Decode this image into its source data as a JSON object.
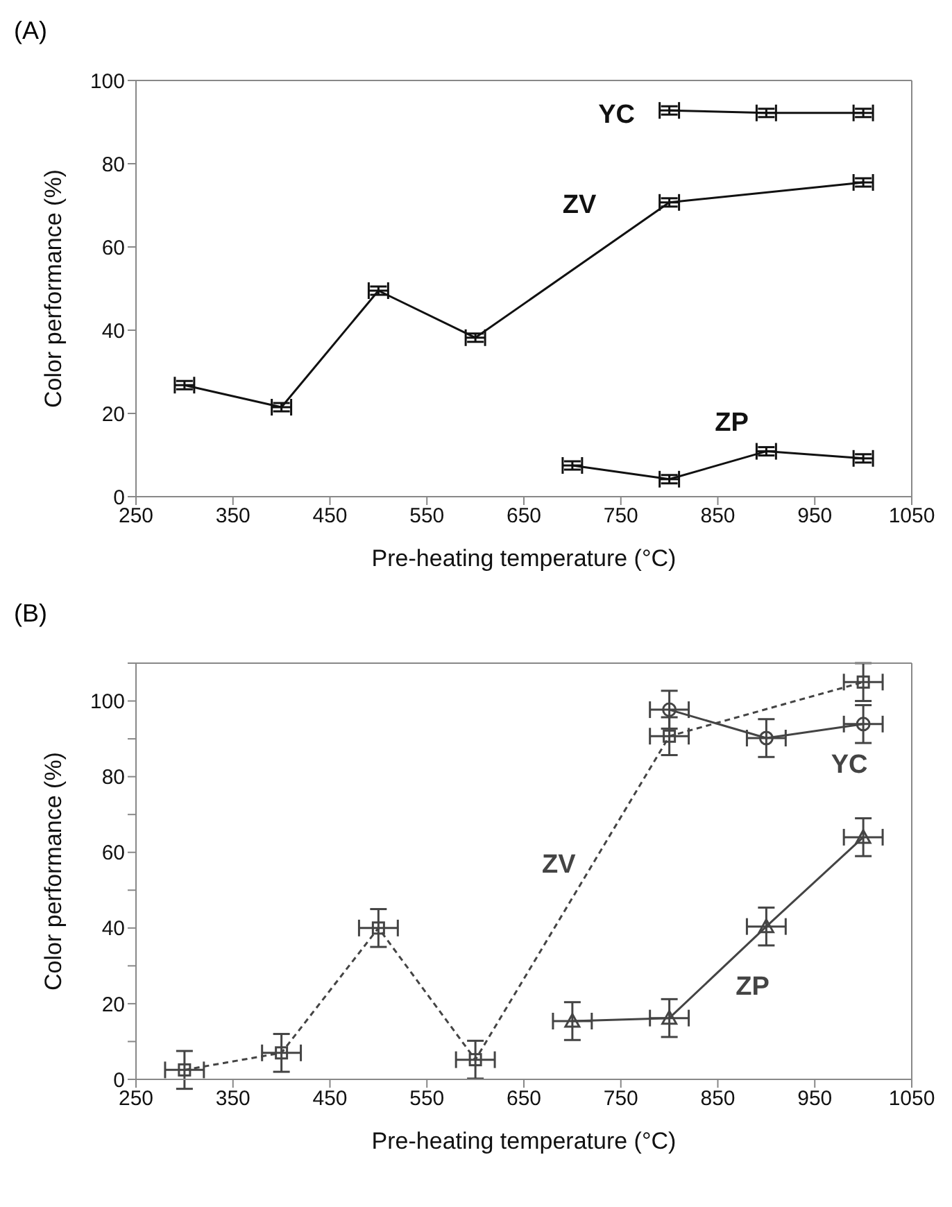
{
  "chart_data": [
    {
      "type": "line",
      "title": "(A)",
      "xlabel": "Pre-heating temperature (°C)",
      "ylabel": "Color performance (%)",
      "xlim": [
        250,
        1050
      ],
      "xticks": [
        250,
        350,
        450,
        550,
        650,
        750,
        850,
        950,
        1050
      ],
      "ylim": [
        0,
        100
      ],
      "yticks": [
        0,
        20,
        40,
        60,
        80,
        100
      ],
      "marker": "none",
      "line_style": "solid",
      "series": [
        {
          "name": "YC",
          "color": "#111111",
          "x": [
            800,
            900,
            1000
          ],
          "values": [
            92.8,
            92.2,
            92.2
          ],
          "errors": [
            1,
            1,
            1
          ],
          "xerrors": [
            10,
            10,
            10
          ]
        },
        {
          "name": "ZV",
          "color": "#111111",
          "x": [
            300,
            400,
            500,
            600,
            800,
            1000
          ],
          "values": [
            26.8,
            21.5,
            49.5,
            38.2,
            70.7,
            75.5
          ],
          "errors": [
            1,
            1,
            1,
            1,
            1,
            1
          ],
          "xerrors": [
            10,
            10,
            10,
            10,
            10,
            10
          ]
        },
        {
          "name": "ZP",
          "color": "#111111",
          "x": [
            700,
            800,
            900,
            1000
          ],
          "values": [
            7.5,
            4.2,
            10.9,
            9.2
          ],
          "errors": [
            1,
            1,
            1,
            1
          ],
          "xerrors": [
            10,
            10,
            10,
            10
          ]
        }
      ]
    },
    {
      "type": "line",
      "title": "(B)",
      "xlabel": "Pre-heating temperature (°C)",
      "ylabel": "Color performance (%)",
      "xlim": [
        250,
        1050
      ],
      "xticks": [
        250,
        350,
        450,
        550,
        650,
        750,
        850,
        950,
        1050
      ],
      "ylim": [
        0,
        110
      ],
      "yticks": [
        0,
        {
          "value": 10,
          "label": null
        },
        20,
        {
          "value": 30,
          "label": null
        },
        40,
        {
          "value": 50,
          "label": null
        },
        60,
        {
          "value": 70,
          "label": null
        },
        80,
        {
          "value": 90,
          "label": null
        },
        100,
        {
          "value": 110,
          "label": null
        }
      ],
      "series": [
        {
          "name": "ZV",
          "color": "#444444",
          "marker": "square",
          "line_style": "dashed",
          "x": [
            300,
            400,
            500,
            600,
            800,
            1000
          ],
          "values": [
            2.5,
            7,
            40,
            5.2,
            90.7,
            105
          ],
          "errors": [
            5,
            5,
            5,
            5,
            5,
            5
          ],
          "xerrors": [
            20,
            20,
            20,
            20,
            20,
            20
          ]
        },
        {
          "name": "YC",
          "color": "#444444",
          "marker": "circle",
          "line_style": "solid",
          "x": [
            800,
            900,
            1000
          ],
          "values": [
            97.7,
            90.2,
            93.9
          ],
          "errors": [
            5,
            5,
            5
          ],
          "xerrors": [
            20,
            20,
            20
          ]
        },
        {
          "name": "ZP",
          "color": "#444444",
          "marker": "triangle",
          "line_style": "solid",
          "x": [
            700,
            800,
            900,
            1000
          ],
          "values": [
            15.4,
            16.2,
            40.4,
            64
          ],
          "errors": [
            5,
            5,
            5,
            5
          ],
          "xerrors": [
            20,
            20,
            20,
            20
          ]
        }
      ]
    }
  ]
}
